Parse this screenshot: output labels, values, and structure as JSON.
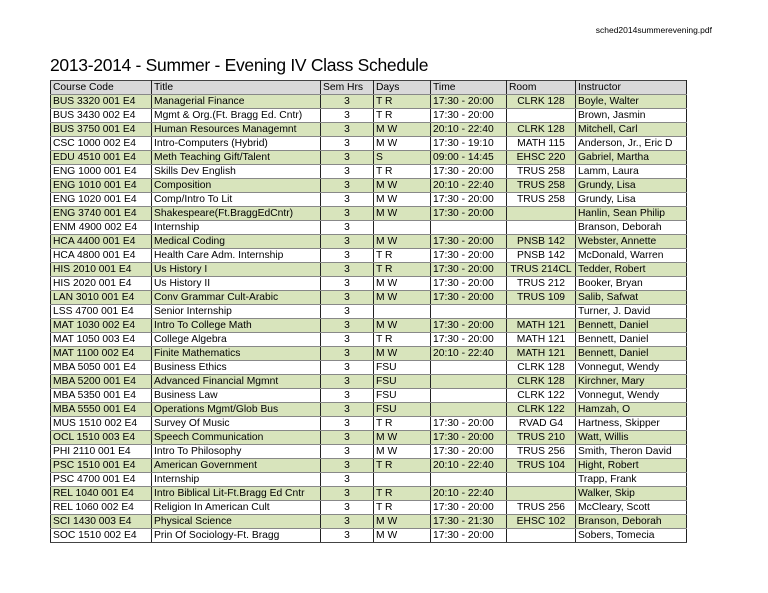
{
  "filename": "sched2014summerevening.pdf",
  "title": "2013-2014 - Summer - Evening IV Class Schedule",
  "colors": {
    "header_bg": "#d9d9d9",
    "alt_row_bg": "#d8e4bc"
  },
  "columns": [
    "Course Code",
    "Title",
    "Sem Hrs",
    "Days",
    "Time",
    "Room",
    "Instructor"
  ],
  "rows": [
    [
      "BUS 3320 001 E4",
      "Managerial Finance",
      "3",
      "T R",
      "17:30 - 20:00",
      "CLRK 128",
      "Boyle, Walter"
    ],
    [
      "BUS 3430 002 E4",
      "Mgmt & Org.(Ft. Bragg Ed. Cntr)",
      "3",
      "T R",
      "17:30 - 20:00",
      "",
      "Brown, Jasmin"
    ],
    [
      "BUS 3750 001 E4",
      "Human Resources Managemnt",
      "3",
      "M W",
      "20:10 - 22:40",
      "CLRK 128",
      "Mitchell, Carl"
    ],
    [
      "CSC 1000 002 E4",
      "Intro-Computers (Hybrid)",
      "3",
      "M W",
      "17:30 - 19:10",
      "MATH 115",
      "Anderson, Jr., Eric D"
    ],
    [
      "EDU 4510 001 E4",
      "Meth Teaching Gift/Talent",
      "3",
      "S",
      "09:00 - 14:45",
      "EHSC 220",
      "Gabriel, Martha"
    ],
    [
      "ENG 1000 001 E4",
      "Skills Dev English",
      "3",
      "T R",
      "17:30 - 20:00",
      "TRUS 258",
      "Lamm, Laura"
    ],
    [
      "ENG 1010 001 E4",
      "Composition",
      "3",
      "M W",
      "20:10 - 22:40",
      "TRUS 258",
      "Grundy, Lisa"
    ],
    [
      "ENG 1020 001 E4",
      "Comp/Intro To Lit",
      "3",
      "M W",
      "17:30 - 20:00",
      "TRUS 258",
      "Grundy, Lisa"
    ],
    [
      "ENG 3740 001 E4",
      "Shakespeare(Ft.BraggEdCntr)",
      "3",
      "M W",
      "17:30 - 20:00",
      "",
      "Hanlin, Sean Philip"
    ],
    [
      "ENM 4900 002 E4",
      "Internship",
      "3",
      "",
      "",
      "",
      "Branson, Deborah"
    ],
    [
      "HCA 4400 001 E4",
      "Medical Coding",
      "3",
      "M W",
      "17:30 - 20:00",
      "PNSB 142",
      "Webster, Annette"
    ],
    [
      "HCA 4800 001 E4",
      "Health Care Adm. Internship",
      "3",
      "T R",
      "17:30 - 20:00",
      "PNSB 142",
      "McDonald, Warren"
    ],
    [
      "HIS 2010 001 E4",
      "Us History I",
      "3",
      "T R",
      "17:30 - 20:00",
      "TRUS 214CL",
      "Tedder, Robert"
    ],
    [
      "HIS 2020 001 E4",
      "Us History II",
      "3",
      "M W",
      "17:30 - 20:00",
      "TRUS 212",
      "Booker, Bryan"
    ],
    [
      "LAN 3010 001 E4",
      "Conv Grammar Cult-Arabic",
      "3",
      "M W",
      "17:30 - 20:00",
      "TRUS 109",
      "Salib, Safwat"
    ],
    [
      "LSS 4700 001 E4",
      "Senior Internship",
      "3",
      "",
      "",
      "",
      "Turner, J. David"
    ],
    [
      "MAT 1030 002 E4",
      "Intro To College Math",
      "3",
      "M W",
      "17:30 - 20:00",
      "MATH 121",
      "Bennett, Daniel"
    ],
    [
      "MAT 1050 003 E4",
      "College Algebra",
      "3",
      "T R",
      "17:30 - 20:00",
      "MATH 121",
      "Bennett, Daniel"
    ],
    [
      "MAT 1100 002 E4",
      "Finite Mathematics",
      "3",
      "M W",
      "20:10 - 22:40",
      "MATH 121",
      "Bennett, Daniel"
    ],
    [
      "MBA 5050 001 E4",
      "Business Ethics",
      "3",
      "FSU",
      "",
      "CLRK 128",
      "Vonnegut, Wendy"
    ],
    [
      "MBA 5200 001 E4",
      "Advanced Financial Mgmnt",
      "3",
      "FSU",
      "",
      "CLRK 128",
      "Kirchner, Mary"
    ],
    [
      "MBA 5350 001 E4",
      "Business Law",
      "3",
      "FSU",
      "",
      "CLRK 122",
      "Vonnegut, Wendy"
    ],
    [
      "MBA 5550 001 E4",
      "Operations Mgmt/Glob Bus",
      "3",
      "FSU",
      "",
      "CLRK 122",
      "Hamzah, O"
    ],
    [
      "MUS 1510 002 E4",
      "Survey Of Music",
      "3",
      "T R",
      "17:30 - 20:00",
      "RVAD G4",
      "Hartness, Skipper"
    ],
    [
      "OCL 1510 003 E4",
      "Speech Communication",
      "3",
      "M W",
      "17:30 - 20:00",
      "TRUS 210",
      "Watt, Willis"
    ],
    [
      "PHI 2110 001 E4",
      "Intro To Philosophy",
      "3",
      "M W",
      "17:30 - 20:00",
      "TRUS 256",
      "Smith, Theron David"
    ],
    [
      "PSC 1510 001 E4",
      "American Government",
      "3",
      "T R",
      "20:10 - 22:40",
      "TRUS 104",
      "Hight, Robert"
    ],
    [
      "PSC 4700 001 E4",
      "Internship",
      "3",
      "",
      "",
      "",
      "Trapp, Frank"
    ],
    [
      "REL 1040 001 E4",
      "Intro Biblical Lit-Ft.Bragg Ed Cntr",
      "3",
      "T R",
      "20:10 - 22:40",
      "",
      "Walker, Skip"
    ],
    [
      "REL 1060 002 E4",
      "Religion In American Cult",
      "3",
      "T R",
      "17:30 - 20:00",
      "TRUS 256",
      "McCleary, Scott"
    ],
    [
      "SCI 1430 003 E4",
      "Physical Science",
      "3",
      "M W",
      "17:30 - 21:30",
      "EHSC 102",
      "Branson, Deborah"
    ],
    [
      "SOC 1510 002 E4",
      "Prin Of Sociology-Ft. Bragg",
      "3",
      "M W",
      "17:30 - 20:00",
      "",
      "Sobers, Tomecia"
    ]
  ]
}
